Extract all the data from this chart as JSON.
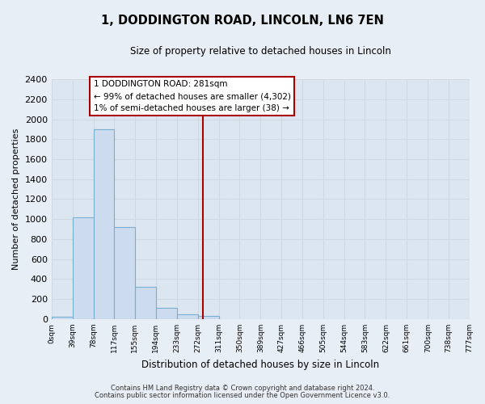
{
  "title": "1, DODDINGTON ROAD, LINCOLN, LN6 7EN",
  "subtitle": "Size of property relative to detached houses in Lincoln",
  "xlabel": "Distribution of detached houses by size in Lincoln",
  "ylabel": "Number of detached properties",
  "footnote1": "Contains HM Land Registry data © Crown copyright and database right 2024.",
  "footnote2": "Contains public sector information licensed under the Open Government Licence v3.0.",
  "bar_edges": [
    0,
    39,
    78,
    117,
    155,
    194,
    233,
    272,
    311,
    350,
    389,
    427,
    466,
    505,
    544,
    583,
    622,
    661,
    700,
    738,
    777
  ],
  "bar_heights": [
    20,
    1020,
    1900,
    920,
    320,
    110,
    50,
    30,
    0,
    0,
    0,
    0,
    0,
    0,
    0,
    0,
    0,
    0,
    0,
    0
  ],
  "bar_color": "#ccdcee",
  "bar_edgecolor": "#7aaed0",
  "vline_x": 281,
  "vline_color": "#aa0000",
  "annotation_title": "1 DODDINGTON ROAD: 281sqm",
  "annotation_line1": "← 99% of detached houses are smaller (4,302)",
  "annotation_line2": "1% of semi-detached houses are larger (38) →",
  "annotation_box_color": "#ffffff",
  "annotation_box_edgecolor": "#aa0000",
  "ylim": [
    0,
    2400
  ],
  "yticks": [
    0,
    200,
    400,
    600,
    800,
    1000,
    1200,
    1400,
    1600,
    1800,
    2000,
    2200,
    2400
  ],
  "xtick_labels": [
    "0sqm",
    "39sqm",
    "78sqm",
    "117sqm",
    "155sqm",
    "194sqm",
    "233sqm",
    "272sqm",
    "311sqm",
    "350sqm",
    "389sqm",
    "427sqm",
    "466sqm",
    "505sqm",
    "544sqm",
    "583sqm",
    "622sqm",
    "661sqm",
    "700sqm",
    "738sqm",
    "777sqm"
  ],
  "grid_color": "#d0d8e0",
  "background_color": "#e8eef5",
  "plot_bg_color": "#dce6f0"
}
